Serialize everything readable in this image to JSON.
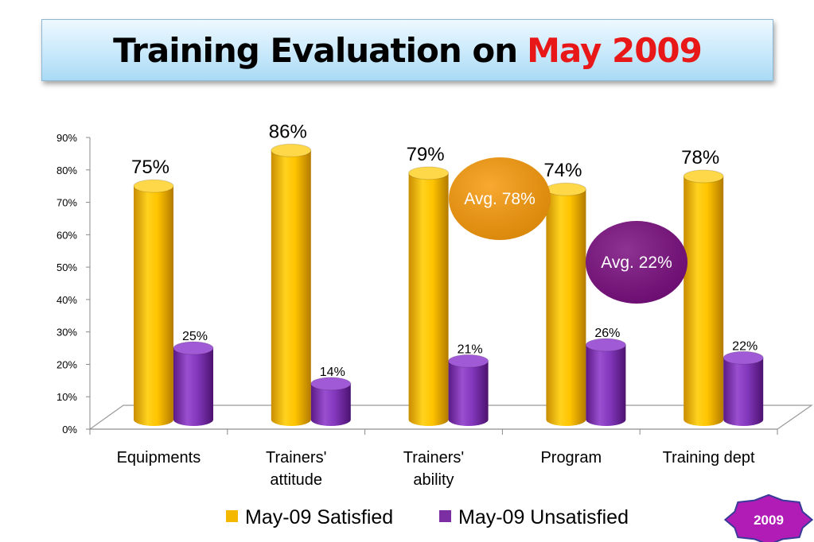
{
  "title": {
    "main": "Training Evaluation on",
    "accent": "May 2009"
  },
  "badge": {
    "label": "2009",
    "color": "#b01cb5"
  },
  "callouts": [
    {
      "label": "Avg. 78%",
      "color": "#f79a0c"
    },
    {
      "label": "Avg. 22%",
      "color": "#7a0f80"
    }
  ],
  "chart_data": {
    "type": "bar",
    "style": "3d-cylinder",
    "categories": [
      "Equipments",
      "Trainers' attitude",
      "Trainers' ability",
      "Program",
      "Training dept"
    ],
    "series": [
      {
        "name": "May-09 Satisfied",
        "values": [
          75,
          86,
          79,
          74,
          78
        ],
        "labels": [
          "75%",
          "86%",
          "79%",
          "74%",
          "78%"
        ],
        "color": "#f5b800"
      },
      {
        "name": "May-09 Unsatisfied",
        "values": [
          25,
          14,
          21,
          26,
          22
        ],
        "labels": [
          "25%",
          "14%",
          "21%",
          "26%",
          "22%"
        ],
        "color": "#7b2fa3"
      }
    ],
    "yticks": [
      "0%",
      "10%",
      "20%",
      "30%",
      "40%",
      "50%",
      "60%",
      "70%",
      "80%",
      "90%"
    ],
    "ylim": [
      0,
      90
    ],
    "legend": "bottom",
    "grid": false
  }
}
